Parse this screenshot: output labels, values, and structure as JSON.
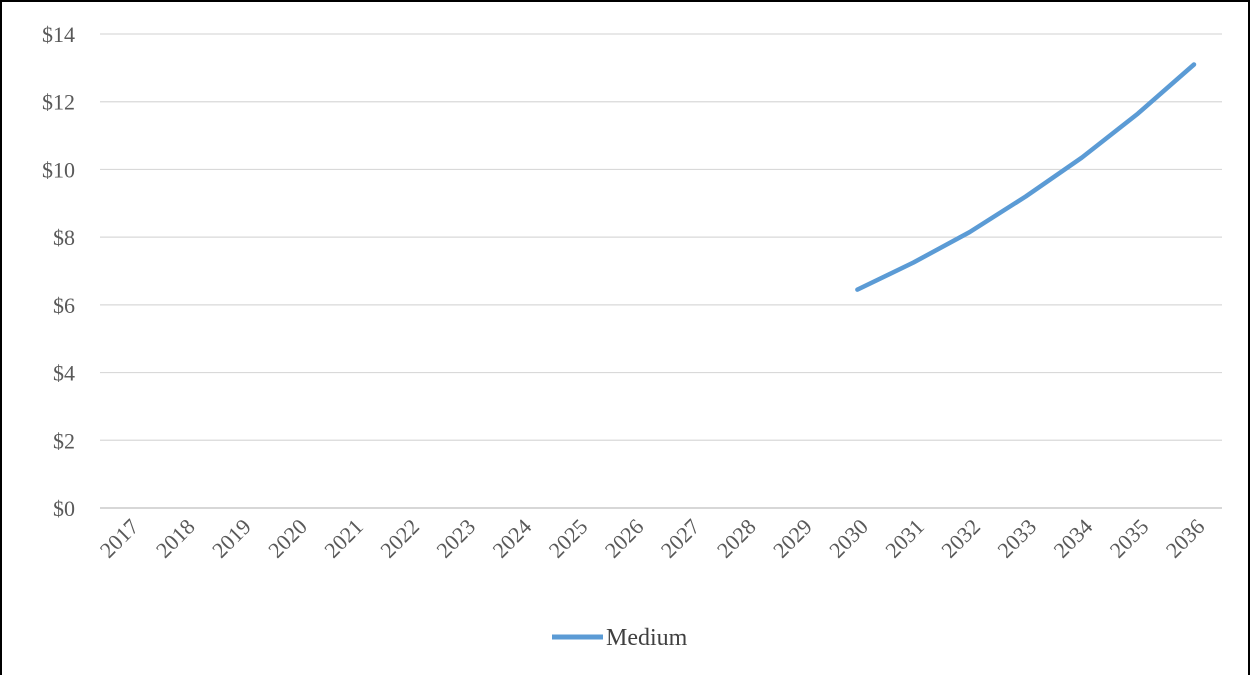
{
  "chart_data": {
    "type": "line",
    "title": "",
    "xlabel": "",
    "ylabel": "",
    "categories": [
      "2017",
      "2018",
      "2019",
      "2020",
      "2021",
      "2022",
      "2023",
      "2024",
      "2025",
      "2026",
      "2027",
      "2028",
      "2029",
      "2030",
      "2031",
      "2032",
      "2033",
      "2034",
      "2035",
      "2036"
    ],
    "y_tick_labels": [
      "$0",
      "$2",
      "$4",
      "$6",
      "$8",
      "$10",
      "$12",
      "$14"
    ],
    "y_ticks": [
      0,
      2,
      4,
      6,
      8,
      10,
      12,
      14
    ],
    "ylim": [
      0,
      14
    ],
    "grid": true,
    "legend_position": "bottom",
    "series": [
      {
        "name": "Medium",
        "color": "#5B9BD5",
        "values": [
          null,
          null,
          null,
          null,
          null,
          null,
          null,
          null,
          null,
          null,
          null,
          null,
          null,
          6.45,
          7.25,
          8.15,
          9.2,
          10.35,
          11.65,
          13.1
        ]
      }
    ]
  }
}
